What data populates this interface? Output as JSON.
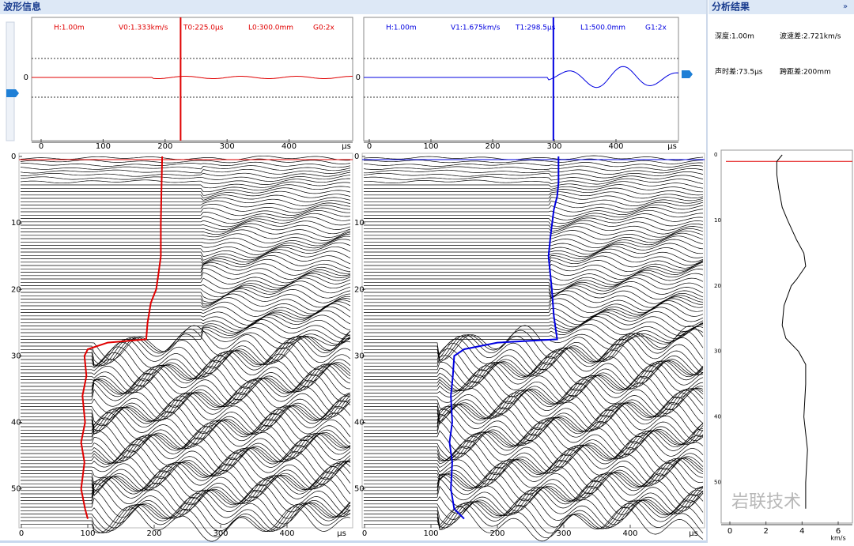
{
  "header": {
    "left_title": "波形信息",
    "right_title": "分析结果",
    "collapse": "»"
  },
  "top_panels": [
    {
      "labels": [
        "H:1.00m",
        "V0:1.333km/s",
        "T0:225.0μs",
        "L0:300.0mm",
        "G0:2x"
      ],
      "color": "#e00000",
      "cursor": 225.0,
      "zero_label": "0",
      "xlim": [
        0,
        500
      ],
      "xticks": [
        0,
        100,
        200,
        300,
        400
      ],
      "x_unit": "μs"
    },
    {
      "labels": [
        "H:1.00m",
        "V1:1.675km/s",
        "T1:298.5μs",
        "L1:500.0mm",
        "G1:2x"
      ],
      "color": "#0000e0",
      "cursor": 298.5,
      "zero_label": "0",
      "xlim": [
        0,
        500
      ],
      "xticks": [
        0,
        100,
        200,
        300,
        400
      ],
      "x_unit": "μs"
    }
  ],
  "bottom_panels": [
    {
      "color": "#e00000",
      "xlim": [
        0,
        500
      ],
      "xticks": [
        0,
        100,
        200,
        300,
        400
      ],
      "x_unit": "μs",
      "ylim": [
        0,
        55.5
      ],
      "yticks": [
        0,
        10,
        20,
        30,
        40,
        50
      ],
      "pick": {
        "depths": [
          0,
          5,
          10,
          15,
          18,
          20,
          22,
          25,
          27.5,
          28,
          29,
          30,
          33,
          36,
          40,
          43,
          46,
          50,
          53,
          54.5
        ],
        "values": [
          212,
          211,
          210,
          210,
          206,
          203,
          195,
          190,
          188,
          130,
          100,
          95,
          98,
          92,
          96,
          90,
          95,
          90,
          96,
          100
        ]
      }
    },
    {
      "color": "#0000e0",
      "xlim": [
        0,
        500
      ],
      "xticks": [
        0,
        100,
        200,
        300,
        400
      ],
      "x_unit": "μs",
      "ylim": [
        0,
        55.5
      ],
      "yticks": [
        0,
        10,
        20,
        30,
        40,
        50
      ],
      "pick": {
        "depths": [
          0,
          4,
          6,
          8,
          12,
          15,
          18,
          20,
          24,
          27.5,
          28,
          29,
          30,
          33,
          36,
          40,
          43,
          46,
          50,
          53,
          54.5
        ],
        "values": [
          292,
          292,
          290,
          285,
          280,
          277,
          280,
          282,
          285,
          290,
          200,
          150,
          135,
          133,
          130,
          132,
          128,
          132,
          130,
          135,
          150
        ]
      }
    }
  ],
  "results": [
    "深度:1.00m",
    "波速差:2.721km/s",
    "声时差:73.5μs",
    "跨距差:200mm"
  ],
  "profile": {
    "current_depth": 1,
    "xlim": [
      0,
      6
    ],
    "xticks": [
      0,
      2,
      4,
      6
    ],
    "x_unit": "km/s",
    "ylim": [
      0,
      55
    ],
    "yticks": [
      0,
      10,
      20,
      30,
      40,
      50
    ],
    "depths": [
      0,
      1,
      3,
      5,
      8,
      10,
      13,
      15,
      17,
      19,
      20,
      23,
      26,
      28,
      30,
      32,
      35,
      40,
      45,
      50,
      54
    ],
    "values": [
      2.9,
      2.6,
      2.6,
      2.7,
      2.9,
      3.2,
      3.7,
      4.1,
      4.2,
      3.7,
      3.4,
      3.0,
      2.9,
      3.1,
      3.8,
      4.2,
      4.2,
      4.1,
      4.3,
      4.2,
      4.2
    ]
  },
  "watermark": "岩联技术"
}
